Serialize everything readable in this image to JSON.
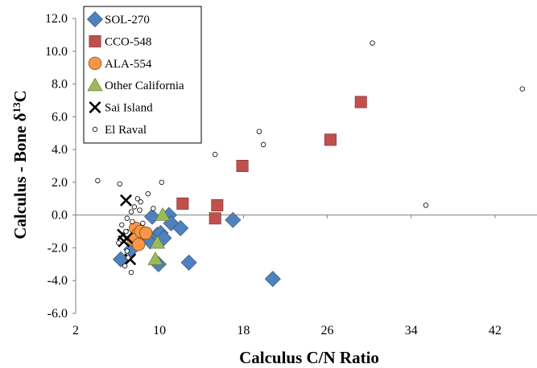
{
  "chart_data": {
    "type": "scatter",
    "xlabel": "Calculus C/N Ratio",
    "ylabel_main": "Calculus - Bone  δ",
    "ylabel_sup": "13",
    "ylabel_tail": "C",
    "xlim": [
      2,
      46
    ],
    "ylim": [
      -6,
      12
    ],
    "x_ticks": [
      2,
      10,
      18,
      26,
      34,
      42
    ],
    "y_ticks": [
      12,
      10,
      8,
      6,
      4,
      2,
      0,
      -2,
      -4,
      -6
    ],
    "y_tick_labels": [
      "12.0",
      "10.0",
      "8.0",
      "6.0",
      "4.0",
      "2.0",
      "0.0",
      "-2.0",
      "-4.0",
      "-6.0"
    ],
    "legend_position": "top-left",
    "series": [
      {
        "name": "SOL-270",
        "marker": "diamond",
        "color": "#4f81bd",
        "points": [
          [
            6.3,
            -2.7
          ],
          [
            7.3,
            -2.1
          ],
          [
            7.8,
            -1.5
          ],
          [
            8.6,
            -1.3
          ],
          [
            9.1,
            -1.6
          ],
          [
            9.3,
            -0.1
          ],
          [
            9.8,
            -1.2
          ],
          [
            9.9,
            -3.0
          ],
          [
            10.1,
            -1.1
          ],
          [
            10.4,
            -1.4
          ],
          [
            10.9,
            0.0
          ],
          [
            11.1,
            -0.5
          ],
          [
            12.0,
            -0.8
          ],
          [
            12.8,
            -2.9
          ],
          [
            17.0,
            -0.3
          ],
          [
            20.8,
            -3.9
          ]
        ]
      },
      {
        "name": "CCO-548",
        "marker": "square",
        "color": "#c0504d",
        "points": [
          [
            12.2,
            0.7
          ],
          [
            15.3,
            -0.2
          ],
          [
            15.5,
            0.6
          ],
          [
            17.9,
            3.0
          ],
          [
            26.3,
            4.6
          ],
          [
            29.2,
            6.9
          ]
        ]
      },
      {
        "name": "ALA-554",
        "marker": "circle",
        "color": "#f79646",
        "points": [
          [
            7.7,
            -0.8
          ],
          [
            7.9,
            -1.2
          ],
          [
            7.5,
            -1.5
          ],
          [
            8.2,
            -1.0
          ],
          [
            8.7,
            -1.1
          ],
          [
            8.0,
            -1.8
          ]
        ]
      },
      {
        "name": "Other California",
        "marker": "triangle",
        "color": "#9bbb59",
        "points": [
          [
            10.3,
            0.0
          ],
          [
            9.6,
            -2.7
          ],
          [
            9.8,
            -1.7
          ]
        ]
      },
      {
        "name": "Sai Island",
        "marker": "x",
        "color": "#000000",
        "points": [
          [
            6.8,
            0.9
          ],
          [
            6.5,
            -1.2
          ],
          [
            6.6,
            -1.6
          ],
          [
            6.9,
            -1.4
          ],
          [
            7.2,
            -2.7
          ]
        ]
      },
      {
        "name": "El Raval",
        "marker": "open-circle",
        "color": "#000000",
        "points": [
          [
            4.1,
            2.1
          ],
          [
            6.2,
            1.9
          ],
          [
            8.9,
            1.3
          ],
          [
            10.2,
            2.0
          ],
          [
            7.9,
            1.0
          ],
          [
            8.2,
            0.8
          ],
          [
            7.6,
            0.5
          ],
          [
            7.3,
            0.2
          ],
          [
            8.1,
            0.3
          ],
          [
            6.9,
            -0.2
          ],
          [
            7.4,
            -0.4
          ],
          [
            6.4,
            -0.6
          ],
          [
            6.8,
            -1.0
          ],
          [
            6.1,
            -1.7
          ],
          [
            6.9,
            -2.2
          ],
          [
            7.0,
            -2.6
          ],
          [
            6.7,
            -3.1
          ],
          [
            7.3,
            -3.5
          ],
          [
            8.4,
            -0.5
          ],
          [
            9.4,
            0.4
          ],
          [
            15.3,
            3.7
          ],
          [
            19.5,
            5.1
          ],
          [
            19.9,
            4.3
          ],
          [
            30.3,
            10.5
          ],
          [
            35.4,
            0.6
          ],
          [
            44.6,
            7.7
          ]
        ]
      }
    ]
  }
}
